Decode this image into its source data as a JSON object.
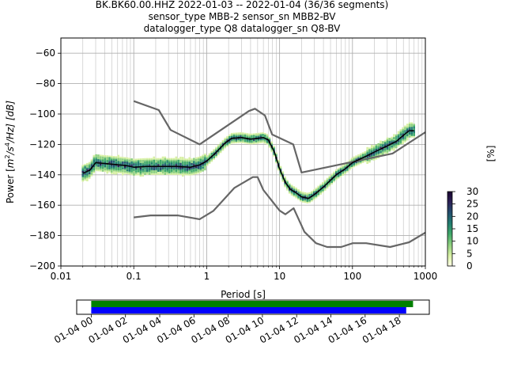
{
  "chart_data": [
    {
      "type": "heatmap",
      "title_lines": [
        "BK.BK60.00.HHZ   2022-01-03 -- 2022-01-04  (36/36 segments)",
        "sensor_type MBB-2 sensor_sn MBB2-BV",
        "datalogger_type Q8 datalogger_sn Q8-BV"
      ],
      "xlabel": "Period [s]",
      "ylabel": "Power [m²/s⁴/Hz] [dB]",
      "ylabel_parts": {
        "a": "Power [",
        "m": "m",
        "sup2": "2",
        "s": "/s",
        "sup4": "4",
        "hz": "/Hz] [dB]"
      },
      "x_scale": "log",
      "xlim": [
        0.01,
        1000
      ],
      "ylim": [
        -200,
        -50
      ],
      "x_ticks": [
        {
          "value": 0.01,
          "label": "0.01"
        },
        {
          "value": 0.1,
          "label": "0.1"
        },
        {
          "value": 1,
          "label": "1"
        },
        {
          "value": 10,
          "label": "10"
        },
        {
          "value": 100,
          "label": "100"
        },
        {
          "value": 1000,
          "label": "1000"
        }
      ],
      "y_ticks": [
        {
          "value": -60,
          "label": "−60"
        },
        {
          "value": -80,
          "label": "−80"
        },
        {
          "value": -100,
          "label": "−100"
        },
        {
          "value": -120,
          "label": "−120"
        },
        {
          "value": -140,
          "label": "−140"
        },
        {
          "value": -160,
          "label": "−160"
        },
        {
          "value": -180,
          "label": "−180"
        },
        {
          "value": -200,
          "label": "−200"
        }
      ],
      "grid": true,
      "series": [
        {
          "role": "noise-model-high",
          "color": "#666666",
          "x": [
            0.1,
            0.22,
            0.32,
            0.8,
            3.8,
            4.6,
            6.3,
            7.9,
            15.4,
            20,
            354.8,
            1000
          ],
          "y": [
            -91.5,
            -97.4,
            -110.5,
            -120,
            -98,
            -96.5,
            -101,
            -113.5,
            -120,
            -138.5,
            -126,
            -112
          ]
        },
        {
          "role": "noise-model-low",
          "color": "#666666",
          "x": [
            0.1,
            0.17,
            0.4,
            0.8,
            1.24,
            2.4,
            4.3,
            5.0,
            6.0,
            10,
            12,
            15.6,
            21.9,
            31.6,
            45,
            70,
            101,
            154,
            328,
            600,
            1000
          ],
          "y": [
            -168,
            -166.7,
            -166.7,
            -169.2,
            -163.7,
            -148.6,
            -141.5,
            -141.5,
            -150,
            -163.5,
            -166,
            -162,
            -177.5,
            -185,
            -187.5,
            -187.5,
            -185,
            -185,
            -187.5,
            -184.4,
            -178
          ]
        },
        {
          "role": "mode",
          "color": "#000000",
          "x": [
            0.02,
            0.025,
            0.03,
            0.05,
            0.08,
            0.1,
            0.15,
            0.25,
            0.4,
            0.6,
            0.8,
            1.0,
            1.3,
            1.8,
            2.2,
            3.0,
            4.0,
            5.0,
            6.0,
            7.0,
            8.5,
            10,
            12,
            14,
            17,
            20,
            25,
            30,
            40,
            60,
            80,
            100,
            150,
            200,
            300,
            400,
            500,
            600,
            700
          ],
          "y": [
            -139,
            -137,
            -132,
            -133,
            -134,
            -135,
            -134.5,
            -134.5,
            -134.5,
            -135,
            -133.5,
            -131,
            -126,
            -119,
            -116,
            -115.5,
            -116.5,
            -116,
            -115.5,
            -117,
            -125,
            -136,
            -145,
            -149.5,
            -152,
            -154.5,
            -155.5,
            -153,
            -148,
            -140,
            -136,
            -132,
            -128,
            -125,
            -121,
            -118,
            -114,
            -111,
            -111
          ]
        }
      ],
      "colorbar": {
        "label": "[%]",
        "range": [
          0,
          30
        ],
        "ticks": [
          {
            "value": 0,
            "label": "0"
          },
          {
            "value": 5,
            "label": "5"
          },
          {
            "value": 10,
            "label": "10"
          },
          {
            "value": 15,
            "label": "15"
          },
          {
            "value": 20,
            "label": "20"
          },
          {
            "value": 25,
            "label": "25"
          },
          {
            "value": 30,
            "label": "30"
          }
        ],
        "colors": [
          "#ffffe5",
          "#d7f0a3",
          "#8ed07f",
          "#41a96a",
          "#227e70",
          "#224f6e",
          "#2b2157",
          "#1a0530"
        ]
      }
    },
    {
      "type": "bar",
      "role": "data-coverage",
      "x_ticks": [
        {
          "hour": 0,
          "label": "01-04 00"
        },
        {
          "hour": 2,
          "label": "01-04 02"
        },
        {
          "hour": 4,
          "label": "01-04 04"
        },
        {
          "hour": 6,
          "label": "01-04 06"
        },
        {
          "hour": 8,
          "label": "01-04 08"
        },
        {
          "hour": 10,
          "label": "01-04 10"
        },
        {
          "hour": 12,
          "label": "01-04 12"
        },
        {
          "hour": 14,
          "label": "01-04 14"
        },
        {
          "hour": 16,
          "label": "01-04 16"
        },
        {
          "hour": 18,
          "label": "01-04 18"
        }
      ],
      "xlim_hours": [
        -0.85,
        19.75
      ],
      "bars": [
        {
          "name": "",
          "color": "#008000",
          "start_hour": 0,
          "end_hour": 18.8
        },
        {
          "name": "",
          "color": "#0000ff",
          "start_hour": 0,
          "end_hour": 18.4
        }
      ]
    }
  ]
}
